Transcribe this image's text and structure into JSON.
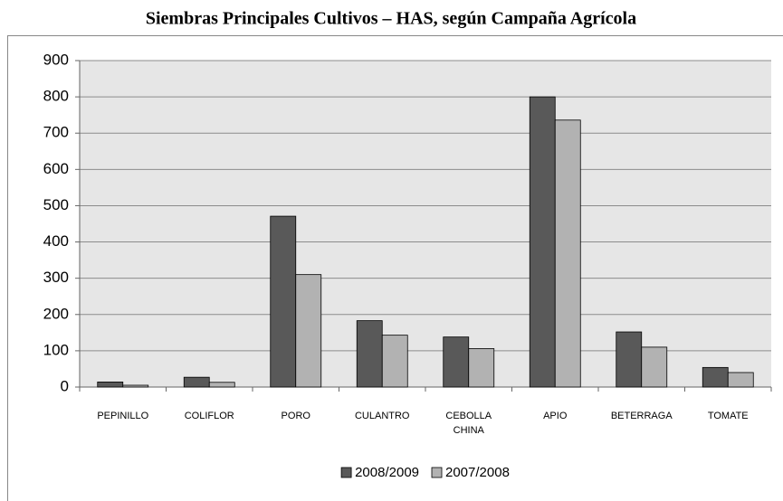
{
  "chart_data": {
    "type": "bar",
    "title": "Siembras Principales Cultivos – HAS, según Campaña Agrícola",
    "categories": [
      "PEPINILLO",
      "COLIFLOR",
      "PORO",
      "CULANTRO",
      "CEBOLLA CHINA",
      "APIO",
      "BETERRAGA",
      "TOMATE"
    ],
    "series": [
      {
        "name": "2008/2009",
        "color": "#595959",
        "values": [
          14,
          27,
          471,
          183,
          138,
          800,
          152,
          54
        ]
      },
      {
        "name": "2007/2008",
        "color": "#b2b2b2",
        "values": [
          5,
          13,
          310,
          143,
          106,
          736,
          110,
          40
        ]
      }
    ],
    "ylim": [
      0,
      900
    ],
    "yticks": [
      0,
      100,
      200,
      300,
      400,
      500,
      600,
      700,
      800,
      900
    ],
    "grid": true,
    "legend": "bottom"
  }
}
